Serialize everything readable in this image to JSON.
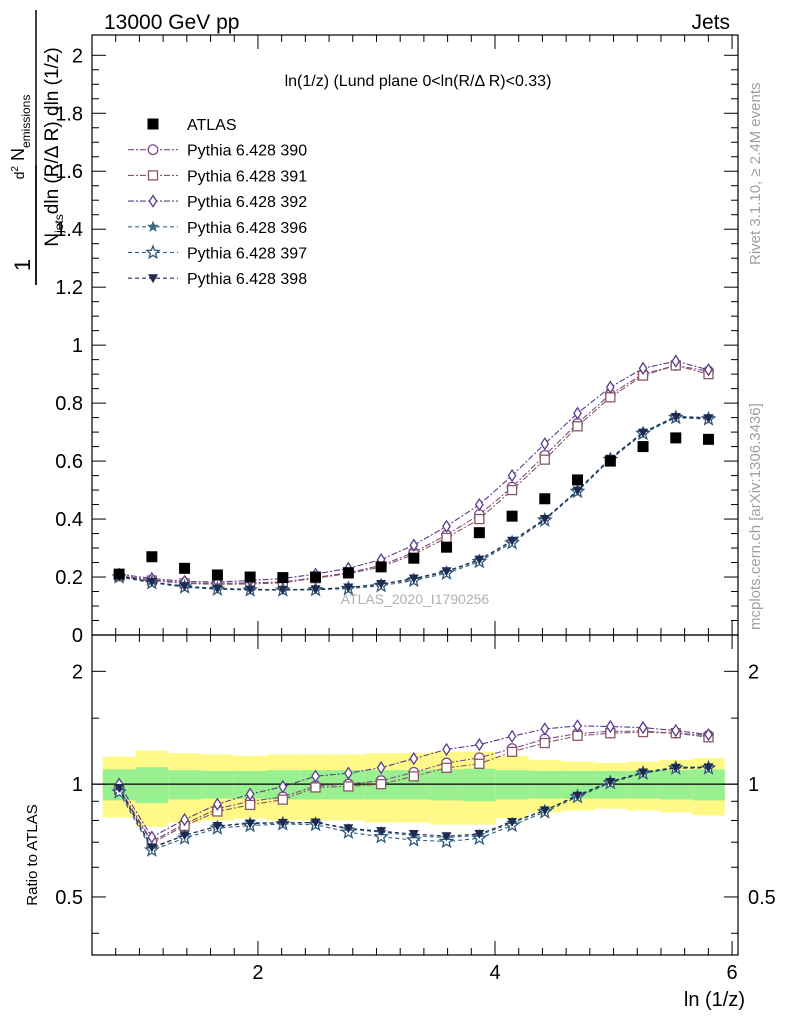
{
  "header": {
    "left": "13000 GeV pp",
    "right": "Jets"
  },
  "side_labels": {
    "rivet": "Rivet 3.1.10, ≥ 2.4M events",
    "mcplots": "mcplots.cern.ch [arXiv:1306.3436]"
  },
  "chart_data": {
    "type": "scatter",
    "title": "ln(1/z) (Lund plane 0<ln(R/Δ R)<0.33)",
    "watermark": "ATLAS_2020_I1790256",
    "xlabel": "ln (1/z)",
    "ylabel": "1/N_jets d²N_emissions / dln(R/ΔR) dln(1/z)",
    "ratio_ylabel": "Ratio to ATLAS",
    "xlim": [
      0.6,
      6.05
    ],
    "ylim": [
      0,
      2.07
    ],
    "ratio_ylim": [
      0.35,
      2.5
    ],
    "x_ticks": [
      2,
      4,
      6
    ],
    "y_ticks": [
      0,
      0.2,
      0.4,
      0.6,
      0.8,
      1,
      1.2,
      1.4,
      1.6,
      1.8,
      2
    ],
    "ratio_ticks": [
      0.5,
      1,
      2
    ],
    "y_tick_labels": [
      "0",
      "0.2",
      "0.4",
      "0.6",
      "0.8",
      "1",
      "1.2",
      "1.4",
      "1.6",
      "1.8",
      "2"
    ],
    "ratio_tick_labels": [
      "0.5",
      "1",
      "2"
    ],
    "x_tick_labels": [
      "2",
      "4",
      "6"
    ],
    "grid": false,
    "legend_position": "top-left",
    "x": [
      0.829,
      1.105,
      1.381,
      1.658,
      1.934,
      2.21,
      2.486,
      2.763,
      3.039,
      3.315,
      3.591,
      3.868,
      4.144,
      4.42,
      4.696,
      4.973,
      5.249,
      5.525,
      5.801
    ],
    "data": {
      "name": "ATLAS",
      "values": [
        0.21,
        0.27,
        0.23,
        0.207,
        0.2,
        0.198,
        0.2,
        0.215,
        0.235,
        0.265,
        0.303,
        0.353,
        0.41,
        0.47,
        0.535,
        0.6,
        0.65,
        0.68,
        0.675
      ],
      "band_inner": [
        0.095,
        0.11,
        0.09,
        0.085,
        0.085,
        0.09,
        0.09,
        0.09,
        0.09,
        0.09,
        0.095,
        0.1,
        0.09,
        0.085,
        0.085,
        0.085,
        0.085,
        0.09,
        0.095
      ],
      "band_outer": [
        0.185,
        0.23,
        0.21,
        0.2,
        0.19,
        0.2,
        0.2,
        0.2,
        0.21,
        0.21,
        0.22,
        0.22,
        0.19,
        0.16,
        0.15,
        0.14,
        0.15,
        0.16,
        0.175
      ]
    },
    "series": [
      {
        "name": "Pythia 6.428 390",
        "color": "#7a4b8c",
        "marker": "circle-open",
        "dash": "6,2,2,2",
        "values": [
          0.205,
          0.19,
          0.18,
          0.178,
          0.18,
          0.183,
          0.198,
          0.215,
          0.24,
          0.285,
          0.345,
          0.415,
          0.51,
          0.62,
          0.73,
          0.83,
          0.9,
          0.93,
          0.91
        ]
      },
      {
        "name": "Pythia 6.428 391",
        "color": "#8a5860",
        "marker": "square-open",
        "dash": "6,2,2,2",
        "values": [
          0.203,
          0.188,
          0.178,
          0.175,
          0.176,
          0.18,
          0.196,
          0.212,
          0.235,
          0.278,
          0.335,
          0.4,
          0.5,
          0.605,
          0.72,
          0.82,
          0.895,
          0.93,
          0.9
        ]
      },
      {
        "name": "Pythia 6.428 392",
        "color": "#5a3a8c",
        "marker": "diamond-open",
        "dash": "6,2,2,2",
        "values": [
          0.21,
          0.195,
          0.185,
          0.183,
          0.188,
          0.195,
          0.21,
          0.23,
          0.26,
          0.31,
          0.375,
          0.45,
          0.55,
          0.66,
          0.765,
          0.855,
          0.92,
          0.945,
          0.915
        ]
      },
      {
        "name": "Pythia 6.428 396",
        "color": "#3a6a88",
        "marker": "star-filled",
        "dash": "4,3",
        "values": [
          0.203,
          0.182,
          0.168,
          0.16,
          0.158,
          0.156,
          0.158,
          0.163,
          0.175,
          0.193,
          0.218,
          0.258,
          0.323,
          0.4,
          0.5,
          0.61,
          0.7,
          0.755,
          0.75
        ]
      },
      {
        "name": "Pythia 6.428 397",
        "color": "#2e5a7a",
        "marker": "star-open",
        "dash": "4,3",
        "values": [
          0.2,
          0.18,
          0.165,
          0.158,
          0.155,
          0.155,
          0.156,
          0.16,
          0.17,
          0.188,
          0.213,
          0.253,
          0.318,
          0.396,
          0.495,
          0.605,
          0.695,
          0.75,
          0.745
        ]
      },
      {
        "name": "Pythia 6.428 398",
        "color": "#1e2a50",
        "marker": "triangle-down-filled",
        "dash": "4,3",
        "values": [
          0.205,
          0.183,
          0.168,
          0.16,
          0.157,
          0.156,
          0.158,
          0.164,
          0.176,
          0.195,
          0.22,
          0.26,
          0.325,
          0.4,
          0.498,
          0.608,
          0.698,
          0.752,
          0.748
        ]
      }
    ]
  }
}
